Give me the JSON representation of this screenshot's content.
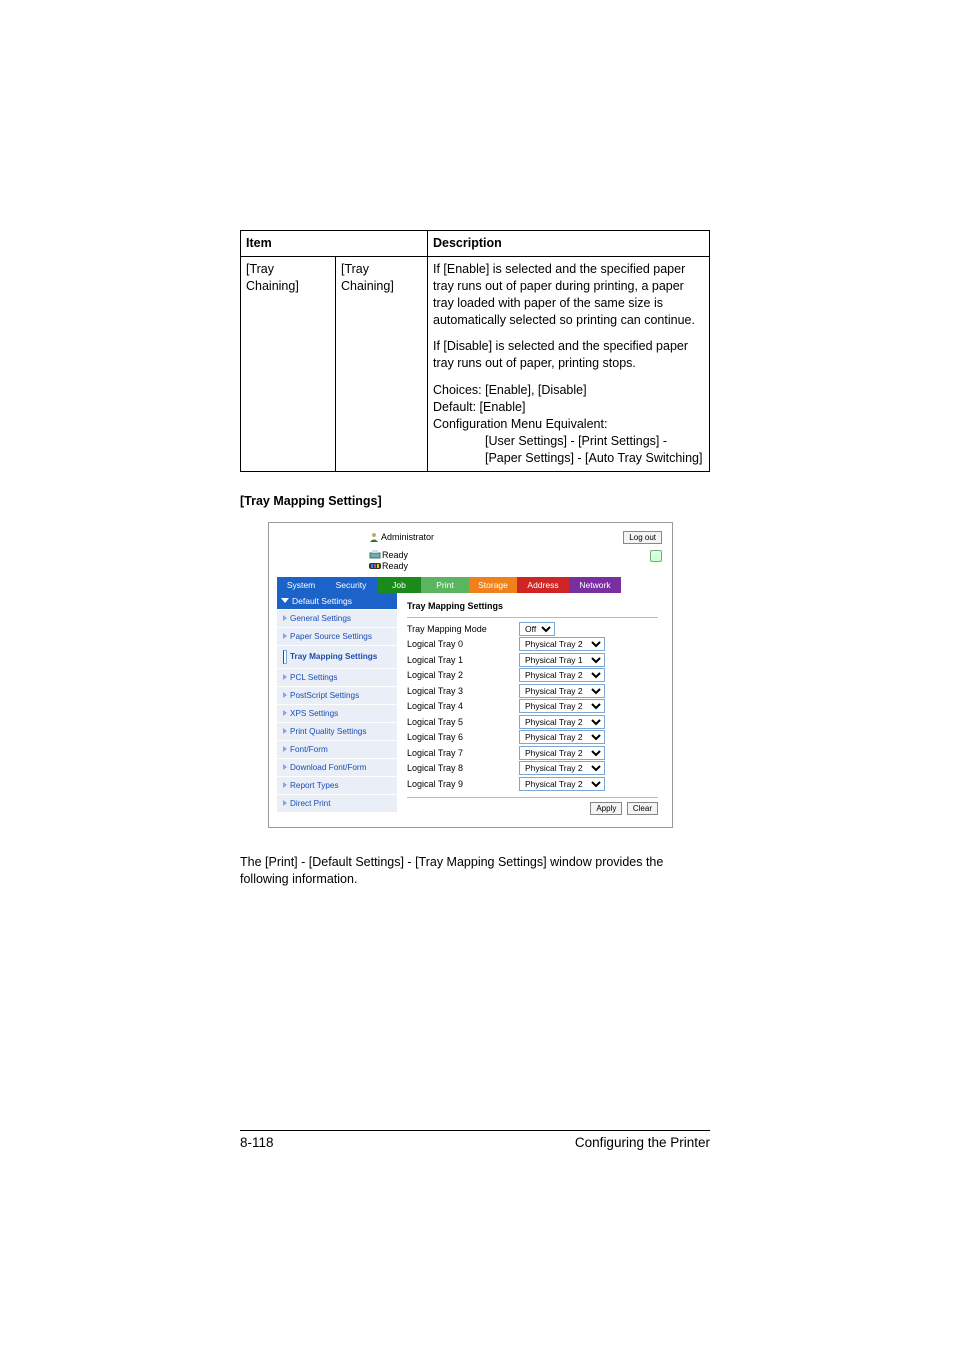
{
  "table": {
    "head_item": "Item",
    "head_desc": "Description",
    "item_col1": "[Tray Chaining]",
    "item_col2": "[Tray Chaining]",
    "p1": "If [Enable] is selected and the specified paper tray runs out of paper during printing, a paper tray loaded with paper of the same size is automatically selected so printing can continue.",
    "p2": "If [Disable] is selected and the specified paper tray runs out of paper, printing stops.",
    "p3a": "Choices: [Enable], [Disable]",
    "p3b": "Default:  [Enable]",
    "p3c": "Configuration Menu Equivalent:",
    "p3d": "[User Settings] - [Print Settings] - [Paper Settings] - [Auto Tray Switching]"
  },
  "section_title": "[Tray Mapping Settings]",
  "shot": {
    "admin": "Administrator",
    "logout": "Log out",
    "ready": "Ready",
    "tabs": {
      "system": "System",
      "security": "Security",
      "job": "Job",
      "print": "Print",
      "storage": "Storage",
      "address": "Address",
      "network": "Network"
    },
    "side_head": "Default Settings",
    "side_items": [
      "General Settings",
      "Paper Source Settings",
      "Tray Mapping Settings",
      "PCL Settings",
      "PostScript Settings",
      "XPS Settings",
      "Print Quality Settings",
      "Font/Form",
      "Download Font/Form",
      "Report Types",
      "Direct Print"
    ],
    "side_selected_index": 2,
    "panel_title": "Tray Mapping Settings",
    "mode_label": "Tray Mapping Mode",
    "mode_value": "Off",
    "rows": [
      {
        "label": "Logical Tray 0",
        "value": "Physical Tray 2"
      },
      {
        "label": "Logical Tray 1",
        "value": "Physical Tray 1"
      },
      {
        "label": "Logical Tray 2",
        "value": "Physical Tray 2"
      },
      {
        "label": "Logical Tray 3",
        "value": "Physical Tray 2"
      },
      {
        "label": "Logical Tray 4",
        "value": "Physical Tray 2"
      },
      {
        "label": "Logical Tray 5",
        "value": "Physical Tray 2"
      },
      {
        "label": "Logical Tray 6",
        "value": "Physical Tray 2"
      },
      {
        "label": "Logical Tray 7",
        "value": "Physical Tray 2"
      },
      {
        "label": "Logical Tray 8",
        "value": "Physical Tray 2"
      },
      {
        "label": "Logical Tray 9",
        "value": "Physical Tray 2"
      }
    ],
    "apply": "Apply",
    "clear": "Clear"
  },
  "caption": "The [Print] - [Default Settings] - [Tray Mapping Settings] window provides the following information.",
  "footer": {
    "page": "8-118",
    "title": "Configuring the Printer"
  },
  "colors": {
    "tab_blue": "#1b62c9",
    "tab_green": "#1a8a1a",
    "tab_active": "#59b65e",
    "tab_orange": "#f0801a",
    "tab_red": "#d02525",
    "tab_purple": "#7a2fa0",
    "side_bg": "#e9eef7",
    "side_text": "#1b4db0"
  }
}
